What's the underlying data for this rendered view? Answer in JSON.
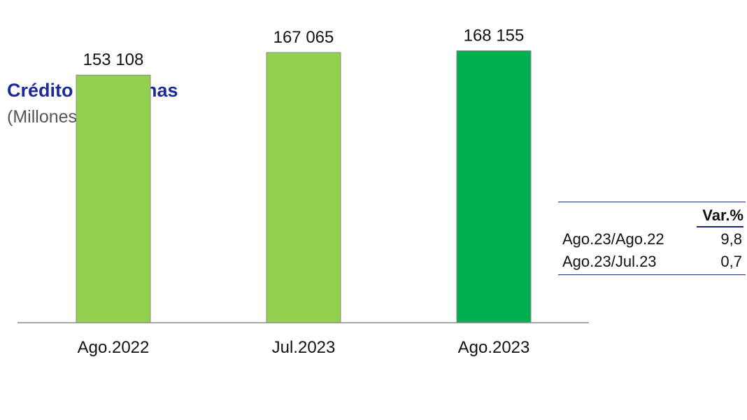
{
  "chart_data": {
    "type": "bar",
    "title": "Crédito a personas",
    "subtitle": "(Millones S/)",
    "categories": [
      "Ago.2022",
      "Jul.2023",
      "Ago.2023"
    ],
    "values": [
      153108,
      167065,
      168155
    ],
    "value_labels": [
      "153 108",
      "167 065",
      "168 155"
    ],
    "colors": [
      "#92d050",
      "#92d050",
      "#00b050"
    ],
    "ylim": [
      0,
      190000
    ],
    "grid": false
  },
  "variation_table": {
    "header": "Var.%",
    "rows": [
      {
        "label": "Ago.23/Ago.22",
        "value": "9,8"
      },
      {
        "label": "Ago.23/Jul.23",
        "value": "0,7"
      }
    ]
  }
}
